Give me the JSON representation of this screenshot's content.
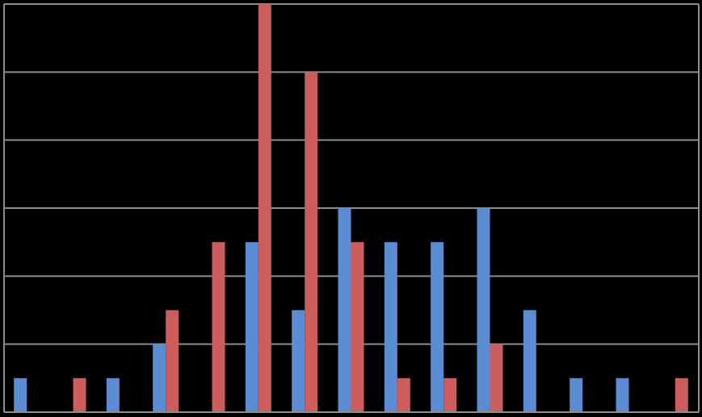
{
  "chart_data": {
    "type": "bar",
    "categories": [
      "",
      "",
      "",
      "",
      "",
      "",
      "",
      "",
      "",
      "",
      "",
      "",
      "",
      "",
      ""
    ],
    "series": [
      {
        "color": "#5B8BD2",
        "values": [
          0.5,
          0,
          0.5,
          1,
          0,
          2.5,
          1.5,
          3,
          2.5,
          2.5,
          3,
          1.5,
          0.5,
          0.5,
          0
        ]
      },
      {
        "color": "#CD5C5C",
        "values": [
          0,
          0.5,
          0,
          1.5,
          2.5,
          6,
          5,
          2.5,
          0.5,
          0.5,
          1,
          0,
          0,
          0,
          0.5
        ]
      }
    ],
    "ylim": [
      0,
      6
    ],
    "y_gridlines": [
      0,
      1,
      2,
      3,
      4,
      5,
      6
    ],
    "grid": true,
    "legend": "none",
    "background": "#000000",
    "grid_color": "#8C8C8C"
  }
}
